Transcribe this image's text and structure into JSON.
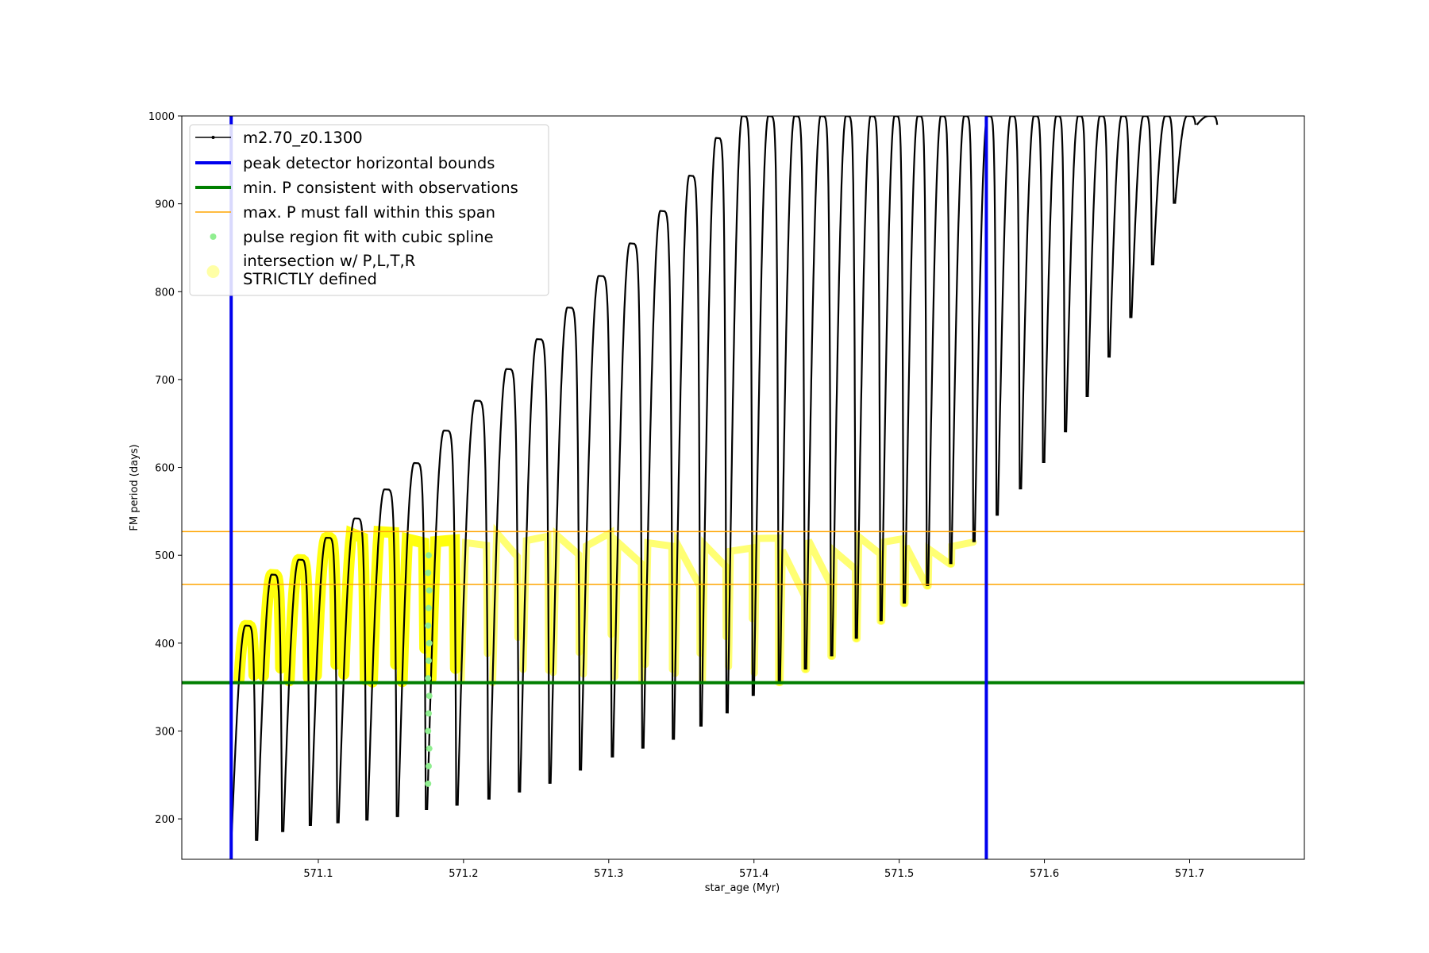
{
  "chart_data": {
    "type": "line",
    "xlabel": "star_age (Myr)",
    "ylabel": "FM period (days)",
    "xlim": [
      571.006,
      571.779
    ],
    "ylim": [
      154,
      1000
    ],
    "xticks": [
      571.1,
      571.2,
      571.3,
      571.4,
      571.5,
      571.6,
      571.7
    ],
    "yticks": [
      200,
      300,
      400,
      500,
      600,
      700,
      800,
      900,
      1000
    ],
    "legend_position": "upper-left",
    "grid": false,
    "colors": {
      "track": "#000000",
      "bounds": "#0000ee",
      "min_p": "#007f00",
      "max_p_span": "#ffa500",
      "spline": "#90ee90",
      "intersection": "#ffff00"
    },
    "legend": [
      {
        "label": "m2.70_z0.1300",
        "kind": "track"
      },
      {
        "label": "peak detector horizontal bounds",
        "kind": "bounds"
      },
      {
        "label": "min. P consistent with observations",
        "kind": "min_p"
      },
      {
        "label": "max. P must fall within this span",
        "kind": "max_p_span"
      },
      {
        "label": "pulse region fit with cubic spline",
        "kind": "spline"
      },
      {
        "label": "intersection w/ P,L,T,R\nSTRICTLY defined",
        "kind": "intersection"
      }
    ],
    "lines": {
      "vertical_bounds_x": [
        571.04,
        571.56
      ],
      "min_p_y": 355,
      "max_p_span_y": [
        467,
        527
      ]
    },
    "series": [
      {
        "kind": "track",
        "pulse_ages": [
          571.04,
          571.058,
          571.076,
          571.095,
          571.114,
          571.134,
          571.155,
          571.175,
          571.196,
          571.218,
          571.239,
          571.26,
          571.281,
          571.303,
          571.324,
          571.345,
          571.364,
          571.382,
          571.4,
          571.418,
          571.436,
          571.454,
          571.471,
          571.488,
          571.504,
          571.52,
          571.536,
          571.552,
          571.568,
          571.584,
          571.6,
          571.615,
          571.63,
          571.645,
          571.66,
          571.675,
          571.69,
          571.705
        ],
        "pulse_min_p": [
          168,
          175,
          185,
          192,
          195,
          198,
          202,
          210,
          215,
          222,
          230,
          240,
          255,
          270,
          280,
          290,
          305,
          320,
          340,
          355,
          370,
          385,
          405,
          425,
          445,
          465,
          490,
          515,
          545,
          575,
          605,
          640,
          680,
          725,
          770,
          830,
          900,
          990
        ],
        "pulse_max_p": [
          420,
          478,
          495,
          520,
          542,
          575,
          605,
          642,
          676,
          712,
          746,
          782,
          818,
          855,
          892,
          932,
          975,
          1000,
          1000,
          1000,
          1000,
          1000,
          1000,
          1000,
          1000,
          1000,
          1000,
          1000,
          1000,
          1000,
          1000,
          1000,
          1000,
          1000,
          1000,
          1000,
          1000,
          1000
        ]
      }
    ]
  }
}
